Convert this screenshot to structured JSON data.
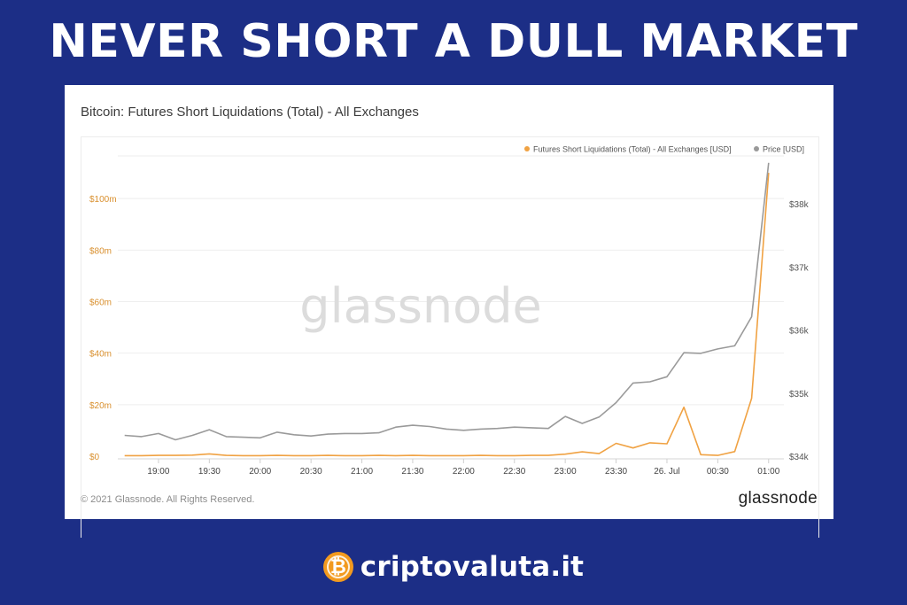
{
  "headline": "NEVER SHORT A DULL MARKET",
  "card": {
    "copyright": "© 2021 Glassnode. All Rights Reserved.",
    "logo": "glassnode",
    "watermark": "glassnode"
  },
  "brand": {
    "name": "criptovaluta.it",
    "icon": "bitcoin-coin-icon"
  },
  "colors": {
    "background": "#1c2e86",
    "liquidations": "#f0a243",
    "price": "#9a9a9a"
  },
  "chart_data": {
    "type": "line",
    "title": "Bitcoin: Futures Short Liquidations (Total) - All Exchanges",
    "legend_placement": "top-right",
    "grid": true,
    "x_tick_labels": [
      "19:00",
      "19:30",
      "20:00",
      "20:30",
      "21:00",
      "21:30",
      "22:00",
      "22:30",
      "23:00",
      "23:30",
      "26. Jul",
      "00:30",
      "01:00"
    ],
    "x_range": [
      18.6,
      25.15
    ],
    "y_left": {
      "label": "",
      "ylim": [
        0,
        120
      ],
      "ticks": [
        0,
        20,
        40,
        60,
        80,
        100
      ],
      "tick_labels": [
        "$0",
        "$20m",
        "$40m",
        "$60m",
        "$80m",
        "$100m"
      ]
    },
    "y_right": {
      "label": "",
      "ylim": [
        34000,
        38900
      ],
      "ticks": [
        34000,
        35000,
        36000,
        37000,
        38000
      ],
      "tick_labels": [
        "$34k",
        "$35k",
        "$36k",
        "$37k",
        "$38k"
      ]
    },
    "series": [
      {
        "name": "Futures Short Liquidations (Total) - All Exchanges [USD]",
        "axis": "left",
        "color": "#f0a243",
        "x": [
          18.667,
          18.833,
          19.0,
          19.167,
          19.333,
          19.5,
          19.667,
          19.833,
          20.0,
          20.167,
          20.333,
          20.5,
          20.667,
          20.833,
          21.0,
          21.167,
          21.333,
          21.5,
          21.667,
          21.833,
          22.0,
          22.167,
          22.333,
          22.5,
          22.667,
          22.833,
          23.0,
          23.167,
          23.333,
          23.5,
          23.667,
          23.833,
          24.0,
          24.167,
          24.333,
          24.5,
          24.667,
          24.833,
          25.0
        ],
        "values": [
          0.2,
          0.2,
          0.3,
          0.3,
          0.4,
          0.9,
          0.3,
          0.2,
          0.2,
          0.3,
          0.2,
          0.2,
          0.3,
          0.2,
          0.2,
          0.3,
          0.2,
          0.3,
          0.2,
          0.2,
          0.2,
          0.3,
          0.2,
          0.2,
          0.3,
          0.3,
          0.8,
          1.7,
          1.0,
          5.0,
          3.2,
          5.2,
          4.8,
          19.0,
          0.6,
          0.3,
          1.8,
          22.5,
          110
        ]
      },
      {
        "name": "Price [USD]",
        "axis": "right",
        "color": "#9a9a9a",
        "x": [
          18.667,
          18.833,
          19.0,
          19.167,
          19.333,
          19.5,
          19.667,
          19.833,
          20.0,
          20.167,
          20.333,
          20.5,
          20.667,
          20.833,
          21.0,
          21.167,
          21.333,
          21.5,
          21.667,
          21.833,
          22.0,
          22.167,
          22.333,
          22.5,
          22.667,
          22.833,
          23.0,
          23.167,
          23.333,
          23.5,
          23.667,
          23.833,
          24.0,
          24.167,
          24.333,
          24.5,
          24.667,
          24.833,
          25.0
        ],
        "values": [
          34330,
          34310,
          34360,
          34260,
          34330,
          34420,
          34310,
          34300,
          34290,
          34380,
          34340,
          34320,
          34350,
          34360,
          34360,
          34370,
          34460,
          34490,
          34470,
          34430,
          34410,
          34430,
          34440,
          34460,
          34450,
          34440,
          34630,
          34520,
          34620,
          34850,
          35160,
          35180,
          35260,
          35640,
          35630,
          35700,
          35750,
          36210,
          38650
        ]
      }
    ]
  }
}
